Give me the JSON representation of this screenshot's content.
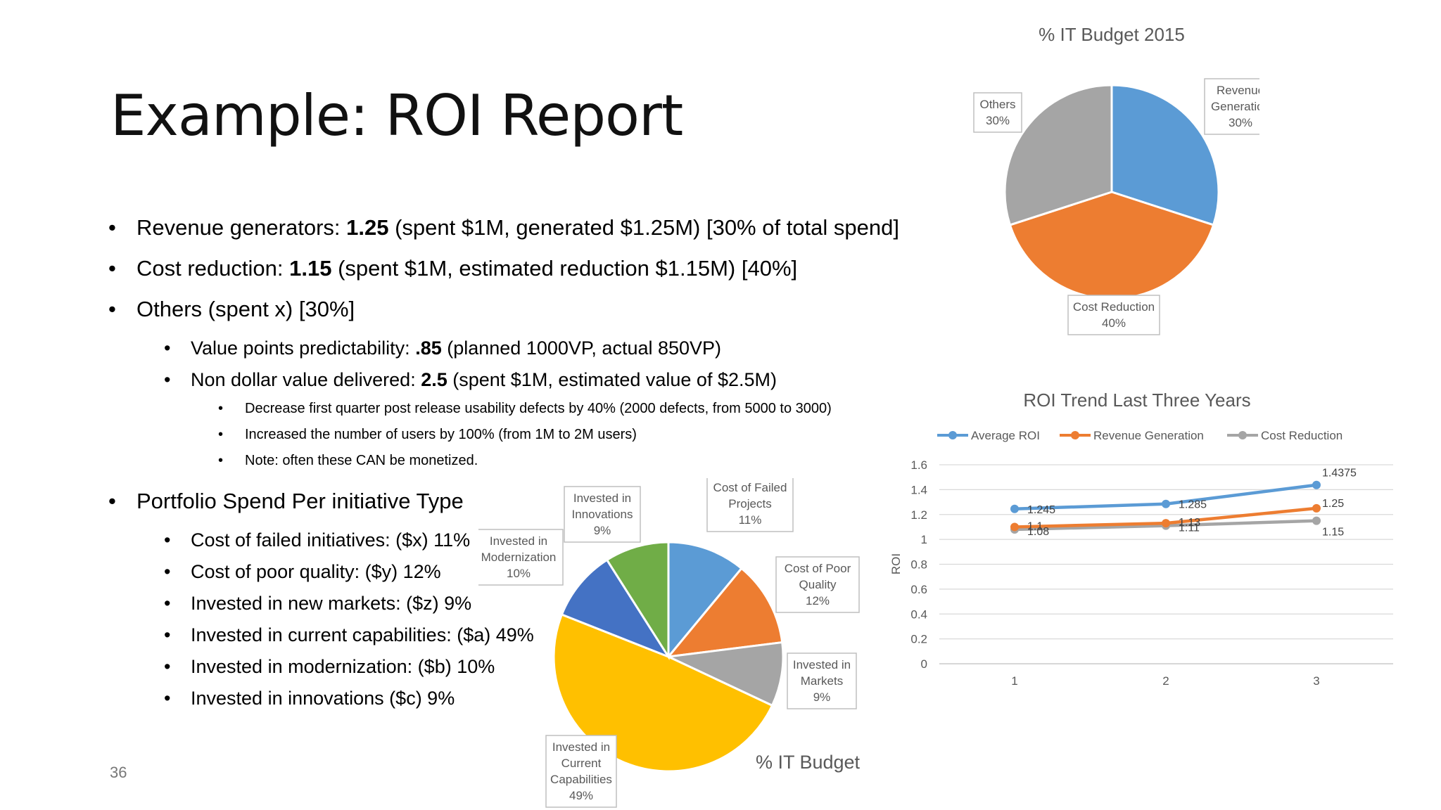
{
  "slide": {
    "title": "Example: ROI Report",
    "number": "36",
    "bullets": [
      {
        "level": 1,
        "pre": "Revenue generators: ",
        "bold": "1.25",
        "post": " (spent $1M, generated $1.25M) [30% of total spend]"
      },
      {
        "level": 1,
        "pre": "Cost reduction: ",
        "bold": "1.15",
        "post": " (spent $1M, estimated reduction $1.15M) [40%]"
      },
      {
        "level": 1,
        "pre": "Others (spent x) [30%]",
        "bold": "",
        "post": ""
      },
      {
        "level": 2,
        "pre": "Value points predictability: ",
        "bold": ".85",
        "post": " (planned 1000VP, actual 850VP)"
      },
      {
        "level": 2,
        "pre": "Non dollar value delivered: ",
        "bold": "2.5",
        "post": " (spent $1M, estimated value of $2.5M)"
      },
      {
        "level": 3,
        "pre": "Decrease first quarter post release usability defects by 40% (2000 defects, from 5000 to 3000)",
        "bold": "",
        "post": ""
      },
      {
        "level": 3,
        "pre": "Increased the number of users by 100% (from 1M to 2M users)",
        "bold": "",
        "post": ""
      },
      {
        "level": 3,
        "pre": "Note: often these CAN be monetized.",
        "bold": "",
        "post": ""
      },
      {
        "level": 1,
        "pre": "Portfolio Spend Per initiative Type",
        "bold": "",
        "post": "",
        "gap_before": true
      },
      {
        "level": 2,
        "pre": "Cost of failed initiatives: ($x) 11%",
        "bold": "",
        "post": ""
      },
      {
        "level": 2,
        "pre": "Cost of poor quality: ($y) 12%",
        "bold": "",
        "post": ""
      },
      {
        "level": 2,
        "pre": "Invested in new markets: ($z) 9%",
        "bold": "",
        "post": ""
      },
      {
        "level": 2,
        "pre": "Invested in current capabilities: ($a) 49%",
        "bold": "",
        "post": ""
      },
      {
        "level": 2,
        "pre": "Invested in modernization: ($b) 10%",
        "bold": "",
        "post": ""
      },
      {
        "level": 2,
        "pre": "Invested in innovations ($c) 9%",
        "bold": "",
        "post": ""
      }
    ]
  },
  "chart_data": [
    {
      "type": "pie",
      "title": "% IT Budget 2015",
      "slices": [
        {
          "label": [
            "Revenue",
            "Generation"
          ],
          "value": 30,
          "value_label": "30%",
          "color": "#5B9BD5"
        },
        {
          "label": [
            "Cost Reduction"
          ],
          "value": 40,
          "value_label": "40%",
          "color": "#ED7D31"
        },
        {
          "label": [
            "Others"
          ],
          "value": 30,
          "value_label": "30%",
          "color": "#A5A5A5"
        }
      ]
    },
    {
      "type": "pie",
      "title": "% IT Budget",
      "slices": [
        {
          "label": [
            "Cost of Failed",
            "Projects"
          ],
          "value": 11,
          "value_label": "11%",
          "color": "#5B9BD5"
        },
        {
          "label": [
            "Cost of Poor",
            "Quality"
          ],
          "value": 12,
          "value_label": "12%",
          "color": "#ED7D31"
        },
        {
          "label": [
            "Invested in",
            "Markets"
          ],
          "value": 9,
          "value_label": "9%",
          "color": "#A5A5A5"
        },
        {
          "label": [
            "Invested in",
            "Current",
            "Capabilities"
          ],
          "value": 49,
          "value_label": "49%",
          "color": "#FFC000"
        },
        {
          "label": [
            "Invested in",
            "Modernization"
          ],
          "value": 10,
          "value_label": "10%",
          "color": "#4472C4"
        },
        {
          "label": [
            "Invested in",
            "Innovations"
          ],
          "value": 9,
          "value_label": "9%",
          "color": "#70AD47"
        }
      ]
    },
    {
      "type": "line",
      "title": "ROI Trend Last Three Years",
      "ylabel": "ROI",
      "xlabel": "",
      "x": [
        "1",
        "2",
        "3"
      ],
      "ylim": [
        0,
        1.6
      ],
      "yticks": [
        "0",
        "0.2",
        "0.4",
        "0.6",
        "0.8",
        "1",
        "1.2",
        "1.4",
        "1.6"
      ],
      "grid": true,
      "legend": "top",
      "series": [
        {
          "name": "Average ROI",
          "color": "#5B9BD5",
          "values": [
            1.245,
            1.285,
            1.4375
          ],
          "labels": [
            "1.245",
            "1.285",
            "1.4375"
          ]
        },
        {
          "name": "Revenue Generation",
          "color": "#ED7D31",
          "values": [
            1.1,
            1.13,
            1.25
          ],
          "labels": [
            "1.1",
            "1.13",
            "1.25"
          ]
        },
        {
          "name": "Cost Reduction",
          "color": "#A5A5A5",
          "values": [
            1.08,
            1.11,
            1.15
          ],
          "labels": [
            "1.08",
            "1.11",
            "1.15"
          ]
        }
      ]
    }
  ]
}
